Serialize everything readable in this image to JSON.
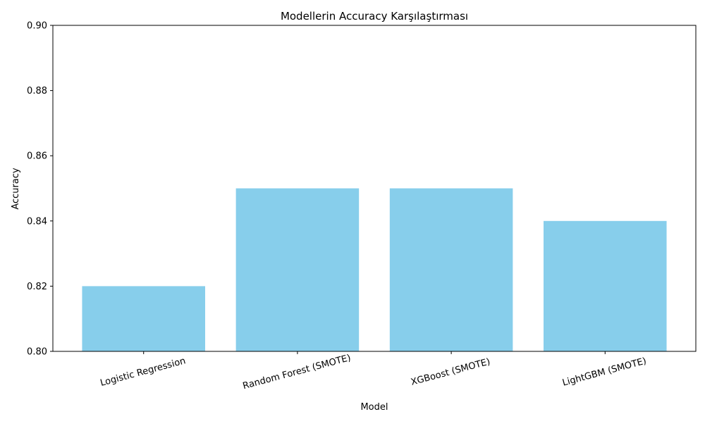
{
  "chart_data": {
    "type": "bar",
    "title": "Modellerin Accuracy Karşılaştırması",
    "xlabel": "Model",
    "ylabel": "Accuracy",
    "categories": [
      "Logistic Regression",
      "Random Forest (SMOTE)",
      "XGBoost (SMOTE)",
      "LightGBM (SMOTE)"
    ],
    "values": [
      0.82,
      0.85,
      0.85,
      0.84
    ],
    "ylim": [
      0.8,
      0.9
    ],
    "yticks": [
      "0.80",
      "0.82",
      "0.84",
      "0.86",
      "0.88",
      "0.90"
    ],
    "bar_color": "#87CEEB",
    "grid": false,
    "legend": "none",
    "xtick_rotation_deg": 15
  }
}
